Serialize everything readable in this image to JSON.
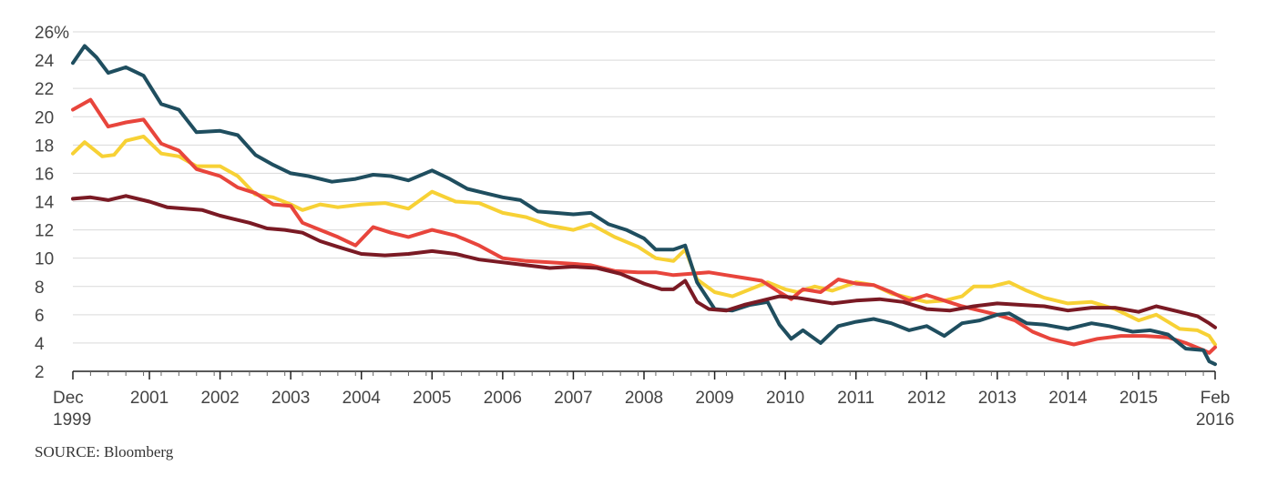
{
  "chart_data": {
    "type": "line",
    "x_start": "1999-12",
    "x_end": "2016-02",
    "ylim": [
      2,
      26
    ],
    "yticks": [
      "2",
      "4",
      "6",
      "8",
      "10",
      "12",
      "14",
      "16",
      "18",
      "20",
      "22",
      "24",
      "26%"
    ],
    "xtick_labels": [
      {
        "top": "Dec",
        "bottom": "1999",
        "date": "1999-12"
      },
      {
        "top": "2001",
        "bottom": "",
        "date": "2001-01"
      },
      {
        "top": "2002",
        "bottom": "",
        "date": "2002-01"
      },
      {
        "top": "2003",
        "bottom": "",
        "date": "2003-01"
      },
      {
        "top": "2004",
        "bottom": "",
        "date": "2004-01"
      },
      {
        "top": "2005",
        "bottom": "",
        "date": "2005-01"
      },
      {
        "top": "2006",
        "bottom": "",
        "date": "2006-01"
      },
      {
        "top": "2007",
        "bottom": "",
        "date": "2007-01"
      },
      {
        "top": "2008",
        "bottom": "",
        "date": "2008-01"
      },
      {
        "top": "2009",
        "bottom": "",
        "date": "2009-01"
      },
      {
        "top": "2010",
        "bottom": "",
        "date": "2010-01"
      },
      {
        "top": "2011",
        "bottom": "",
        "date": "2011-01"
      },
      {
        "top": "2012",
        "bottom": "",
        "date": "2012-01"
      },
      {
        "top": "2013",
        "bottom": "",
        "date": "2013-01"
      },
      {
        "top": "2014",
        "bottom": "",
        "date": "2014-01"
      },
      {
        "top": "2015",
        "bottom": "",
        "date": "2015-01"
      },
      {
        "top": "Feb",
        "bottom": "2016",
        "date": "2016-02"
      }
    ],
    "grid": true,
    "series": [
      {
        "color": "#f7d135",
        "points": [
          [
            "1999-12",
            17.4
          ],
          [
            "2000-02",
            18.2
          ],
          [
            "2000-05",
            17.2
          ],
          [
            "2000-07",
            17.3
          ],
          [
            "2000-09",
            18.3
          ],
          [
            "2000-12",
            18.6
          ],
          [
            "2001-03",
            17.4
          ],
          [
            "2001-06",
            17.2
          ],
          [
            "2001-09",
            16.5
          ],
          [
            "2002-01",
            16.5
          ],
          [
            "2002-04",
            15.8
          ],
          [
            "2002-07",
            14.5
          ],
          [
            "2002-10",
            14.3
          ],
          [
            "2003-01",
            13.8
          ],
          [
            "2003-03",
            13.4
          ],
          [
            "2003-06",
            13.8
          ],
          [
            "2003-09",
            13.6
          ],
          [
            "2004-01",
            13.8
          ],
          [
            "2004-05",
            13.9
          ],
          [
            "2004-09",
            13.5
          ],
          [
            "2005-01",
            14.7
          ],
          [
            "2005-05",
            14.0
          ],
          [
            "2005-09",
            13.9
          ],
          [
            "2006-01",
            13.2
          ],
          [
            "2006-05",
            12.9
          ],
          [
            "2006-09",
            12.3
          ],
          [
            "2007-01",
            12.0
          ],
          [
            "2007-04",
            12.4
          ],
          [
            "2007-08",
            11.5
          ],
          [
            "2007-12",
            10.8
          ],
          [
            "2008-03",
            10.0
          ],
          [
            "2008-06",
            9.8
          ],
          [
            "2008-08",
            10.6
          ],
          [
            "2008-10",
            8.5
          ],
          [
            "2009-01",
            7.6
          ],
          [
            "2009-04",
            7.3
          ],
          [
            "2009-07",
            7.8
          ],
          [
            "2009-10",
            8.3
          ],
          [
            "2010-01",
            7.8
          ],
          [
            "2010-03",
            7.6
          ],
          [
            "2010-06",
            8.0
          ],
          [
            "2010-09",
            7.7
          ],
          [
            "2011-01",
            8.3
          ],
          [
            "2011-04",
            8.1
          ],
          [
            "2011-07",
            7.5
          ],
          [
            "2011-10",
            7.2
          ],
          [
            "2012-01",
            6.9
          ],
          [
            "2012-04",
            7.0
          ],
          [
            "2012-07",
            7.3
          ],
          [
            "2012-09",
            8.0
          ],
          [
            "2012-12",
            8.0
          ],
          [
            "2013-03",
            8.3
          ],
          [
            "2013-06",
            7.7
          ],
          [
            "2013-09",
            7.2
          ],
          [
            "2014-01",
            6.8
          ],
          [
            "2014-05",
            6.9
          ],
          [
            "2014-09",
            6.4
          ],
          [
            "2015-01",
            5.6
          ],
          [
            "2015-04",
            6.0
          ],
          [
            "2015-08",
            5.0
          ],
          [
            "2015-11",
            4.9
          ],
          [
            "2016-01",
            4.5
          ],
          [
            "2016-02",
            3.9
          ]
        ]
      },
      {
        "color": "#e8453c",
        "points": [
          [
            "1999-12",
            20.5
          ],
          [
            "2000-03",
            21.2
          ],
          [
            "2000-06",
            19.3
          ],
          [
            "2000-09",
            19.6
          ],
          [
            "2000-12",
            19.8
          ],
          [
            "2001-03",
            18.1
          ],
          [
            "2001-06",
            17.6
          ],
          [
            "2001-09",
            16.3
          ],
          [
            "2002-01",
            15.8
          ],
          [
            "2002-04",
            15.0
          ],
          [
            "2002-07",
            14.6
          ],
          [
            "2002-10",
            13.8
          ],
          [
            "2003-01",
            13.7
          ],
          [
            "2003-03",
            12.5
          ],
          [
            "2003-06",
            12.0
          ],
          [
            "2003-09",
            11.5
          ],
          [
            "2003-12",
            10.9
          ],
          [
            "2004-03",
            12.2
          ],
          [
            "2004-06",
            11.8
          ],
          [
            "2004-09",
            11.5
          ],
          [
            "2005-01",
            12.0
          ],
          [
            "2005-05",
            11.6
          ],
          [
            "2005-09",
            10.9
          ],
          [
            "2006-01",
            10.0
          ],
          [
            "2006-05",
            9.8
          ],
          [
            "2006-09",
            9.7
          ],
          [
            "2007-01",
            9.6
          ],
          [
            "2007-04",
            9.5
          ],
          [
            "2007-08",
            9.1
          ],
          [
            "2007-12",
            9.0
          ],
          [
            "2008-03",
            9.0
          ],
          [
            "2008-06",
            8.8
          ],
          [
            "2008-09",
            8.9
          ],
          [
            "2008-12",
            9.0
          ],
          [
            "2009-03",
            8.8
          ],
          [
            "2009-06",
            8.6
          ],
          [
            "2009-09",
            8.4
          ],
          [
            "2009-12",
            7.6
          ],
          [
            "2010-02",
            7.1
          ],
          [
            "2010-04",
            7.8
          ],
          [
            "2010-07",
            7.6
          ],
          [
            "2010-10",
            8.5
          ],
          [
            "2011-01",
            8.2
          ],
          [
            "2011-04",
            8.1
          ],
          [
            "2011-07",
            7.6
          ],
          [
            "2011-10",
            7.0
          ],
          [
            "2012-01",
            7.4
          ],
          [
            "2012-04",
            7.0
          ],
          [
            "2012-07",
            6.6
          ],
          [
            "2012-10",
            6.3
          ],
          [
            "2013-01",
            6.0
          ],
          [
            "2013-04",
            5.6
          ],
          [
            "2013-07",
            4.8
          ],
          [
            "2013-10",
            4.3
          ],
          [
            "2014-02",
            3.9
          ],
          [
            "2014-06",
            4.3
          ],
          [
            "2014-10",
            4.5
          ],
          [
            "2015-02",
            4.5
          ],
          [
            "2015-06",
            4.4
          ],
          [
            "2015-09",
            4.0
          ],
          [
            "2015-12",
            3.5
          ],
          [
            "2016-01",
            3.3
          ],
          [
            "2016-02",
            3.7
          ]
        ]
      },
      {
        "color": "#1f4e5f",
        "points": [
          [
            "1999-12",
            23.8
          ],
          [
            "2000-02",
            25.0
          ],
          [
            "2000-04",
            24.2
          ],
          [
            "2000-06",
            23.1
          ],
          [
            "2000-09",
            23.5
          ],
          [
            "2000-12",
            22.9
          ],
          [
            "2001-03",
            20.9
          ],
          [
            "2001-06",
            20.5
          ],
          [
            "2001-09",
            18.9
          ],
          [
            "2002-01",
            19.0
          ],
          [
            "2002-04",
            18.7
          ],
          [
            "2002-07",
            17.3
          ],
          [
            "2002-10",
            16.6
          ],
          [
            "2003-01",
            16.0
          ],
          [
            "2003-04",
            15.8
          ],
          [
            "2003-08",
            15.4
          ],
          [
            "2003-12",
            15.6
          ],
          [
            "2004-03",
            15.9
          ],
          [
            "2004-06",
            15.8
          ],
          [
            "2004-09",
            15.5
          ],
          [
            "2005-01",
            16.2
          ],
          [
            "2005-04",
            15.6
          ],
          [
            "2005-07",
            14.9
          ],
          [
            "2005-10",
            14.6
          ],
          [
            "2006-01",
            14.3
          ],
          [
            "2006-04",
            14.1
          ],
          [
            "2006-07",
            13.3
          ],
          [
            "2006-10",
            13.2
          ],
          [
            "2007-01",
            13.1
          ],
          [
            "2007-04",
            13.2
          ],
          [
            "2007-07",
            12.4
          ],
          [
            "2007-10",
            12.0
          ],
          [
            "2008-01",
            11.4
          ],
          [
            "2008-03",
            10.6
          ],
          [
            "2008-06",
            10.6
          ],
          [
            "2008-08",
            10.9
          ],
          [
            "2008-10",
            8.3
          ],
          [
            "2009-01",
            6.4
          ],
          [
            "2009-04",
            6.3
          ],
          [
            "2009-07",
            6.7
          ],
          [
            "2009-10",
            6.9
          ],
          [
            "2009-12",
            5.3
          ],
          [
            "2010-02",
            4.3
          ],
          [
            "2010-04",
            4.9
          ],
          [
            "2010-07",
            4.0
          ],
          [
            "2010-10",
            5.2
          ],
          [
            "2011-01",
            5.5
          ],
          [
            "2011-04",
            5.7
          ],
          [
            "2011-07",
            5.4
          ],
          [
            "2011-10",
            4.9
          ],
          [
            "2012-01",
            5.2
          ],
          [
            "2012-04",
            4.5
          ],
          [
            "2012-07",
            5.4
          ],
          [
            "2012-10",
            5.6
          ],
          [
            "2013-01",
            6.0
          ],
          [
            "2013-03",
            6.1
          ],
          [
            "2013-06",
            5.4
          ],
          [
            "2013-09",
            5.3
          ],
          [
            "2014-01",
            5.0
          ],
          [
            "2014-05",
            5.4
          ],
          [
            "2014-08",
            5.2
          ],
          [
            "2014-12",
            4.8
          ],
          [
            "2015-03",
            4.9
          ],
          [
            "2015-06",
            4.6
          ],
          [
            "2015-09",
            3.6
          ],
          [
            "2015-12",
            3.5
          ],
          [
            "2016-01",
            2.7
          ],
          [
            "2016-02",
            2.5
          ]
        ]
      },
      {
        "color": "#7a1a24",
        "points": [
          [
            "1999-12",
            14.2
          ],
          [
            "2000-03",
            14.3
          ],
          [
            "2000-06",
            14.1
          ],
          [
            "2000-09",
            14.4
          ],
          [
            "2001-01",
            14.0
          ],
          [
            "2001-04",
            13.6
          ],
          [
            "2001-07",
            13.5
          ],
          [
            "2001-10",
            13.4
          ],
          [
            "2002-01",
            13.0
          ],
          [
            "2002-03",
            12.8
          ],
          [
            "2002-06",
            12.5
          ],
          [
            "2002-09",
            12.1
          ],
          [
            "2002-12",
            12.0
          ],
          [
            "2003-03",
            11.8
          ],
          [
            "2003-06",
            11.2
          ],
          [
            "2003-09",
            10.8
          ],
          [
            "2004-01",
            10.3
          ],
          [
            "2004-05",
            10.2
          ],
          [
            "2004-09",
            10.3
          ],
          [
            "2005-01",
            10.5
          ],
          [
            "2005-05",
            10.3
          ],
          [
            "2005-09",
            9.9
          ],
          [
            "2006-01",
            9.7
          ],
          [
            "2006-05",
            9.5
          ],
          [
            "2006-09",
            9.3
          ],
          [
            "2007-01",
            9.4
          ],
          [
            "2007-05",
            9.3
          ],
          [
            "2007-09",
            8.9
          ],
          [
            "2008-01",
            8.2
          ],
          [
            "2008-04",
            7.8
          ],
          [
            "2008-06",
            7.8
          ],
          [
            "2008-08",
            8.4
          ],
          [
            "2008-10",
            6.9
          ],
          [
            "2008-12",
            6.4
          ],
          [
            "2009-03",
            6.3
          ],
          [
            "2009-06",
            6.7
          ],
          [
            "2009-09",
            7.0
          ],
          [
            "2009-12",
            7.3
          ],
          [
            "2010-03",
            7.2
          ],
          [
            "2010-06",
            7.0
          ],
          [
            "2010-09",
            6.8
          ],
          [
            "2011-01",
            7.0
          ],
          [
            "2011-05",
            7.1
          ],
          [
            "2011-09",
            6.9
          ],
          [
            "2012-01",
            6.4
          ],
          [
            "2012-05",
            6.3
          ],
          [
            "2012-09",
            6.6
          ],
          [
            "2013-01",
            6.8
          ],
          [
            "2013-05",
            6.7
          ],
          [
            "2013-09",
            6.6
          ],
          [
            "2014-01",
            6.3
          ],
          [
            "2014-05",
            6.5
          ],
          [
            "2014-09",
            6.5
          ],
          [
            "2015-01",
            6.2
          ],
          [
            "2015-04",
            6.6
          ],
          [
            "2015-08",
            6.2
          ],
          [
            "2015-11",
            5.9
          ],
          [
            "2016-01",
            5.4
          ],
          [
            "2016-02",
            5.1
          ]
        ]
      }
    ]
  },
  "source": "SOURCE: Bloomberg"
}
